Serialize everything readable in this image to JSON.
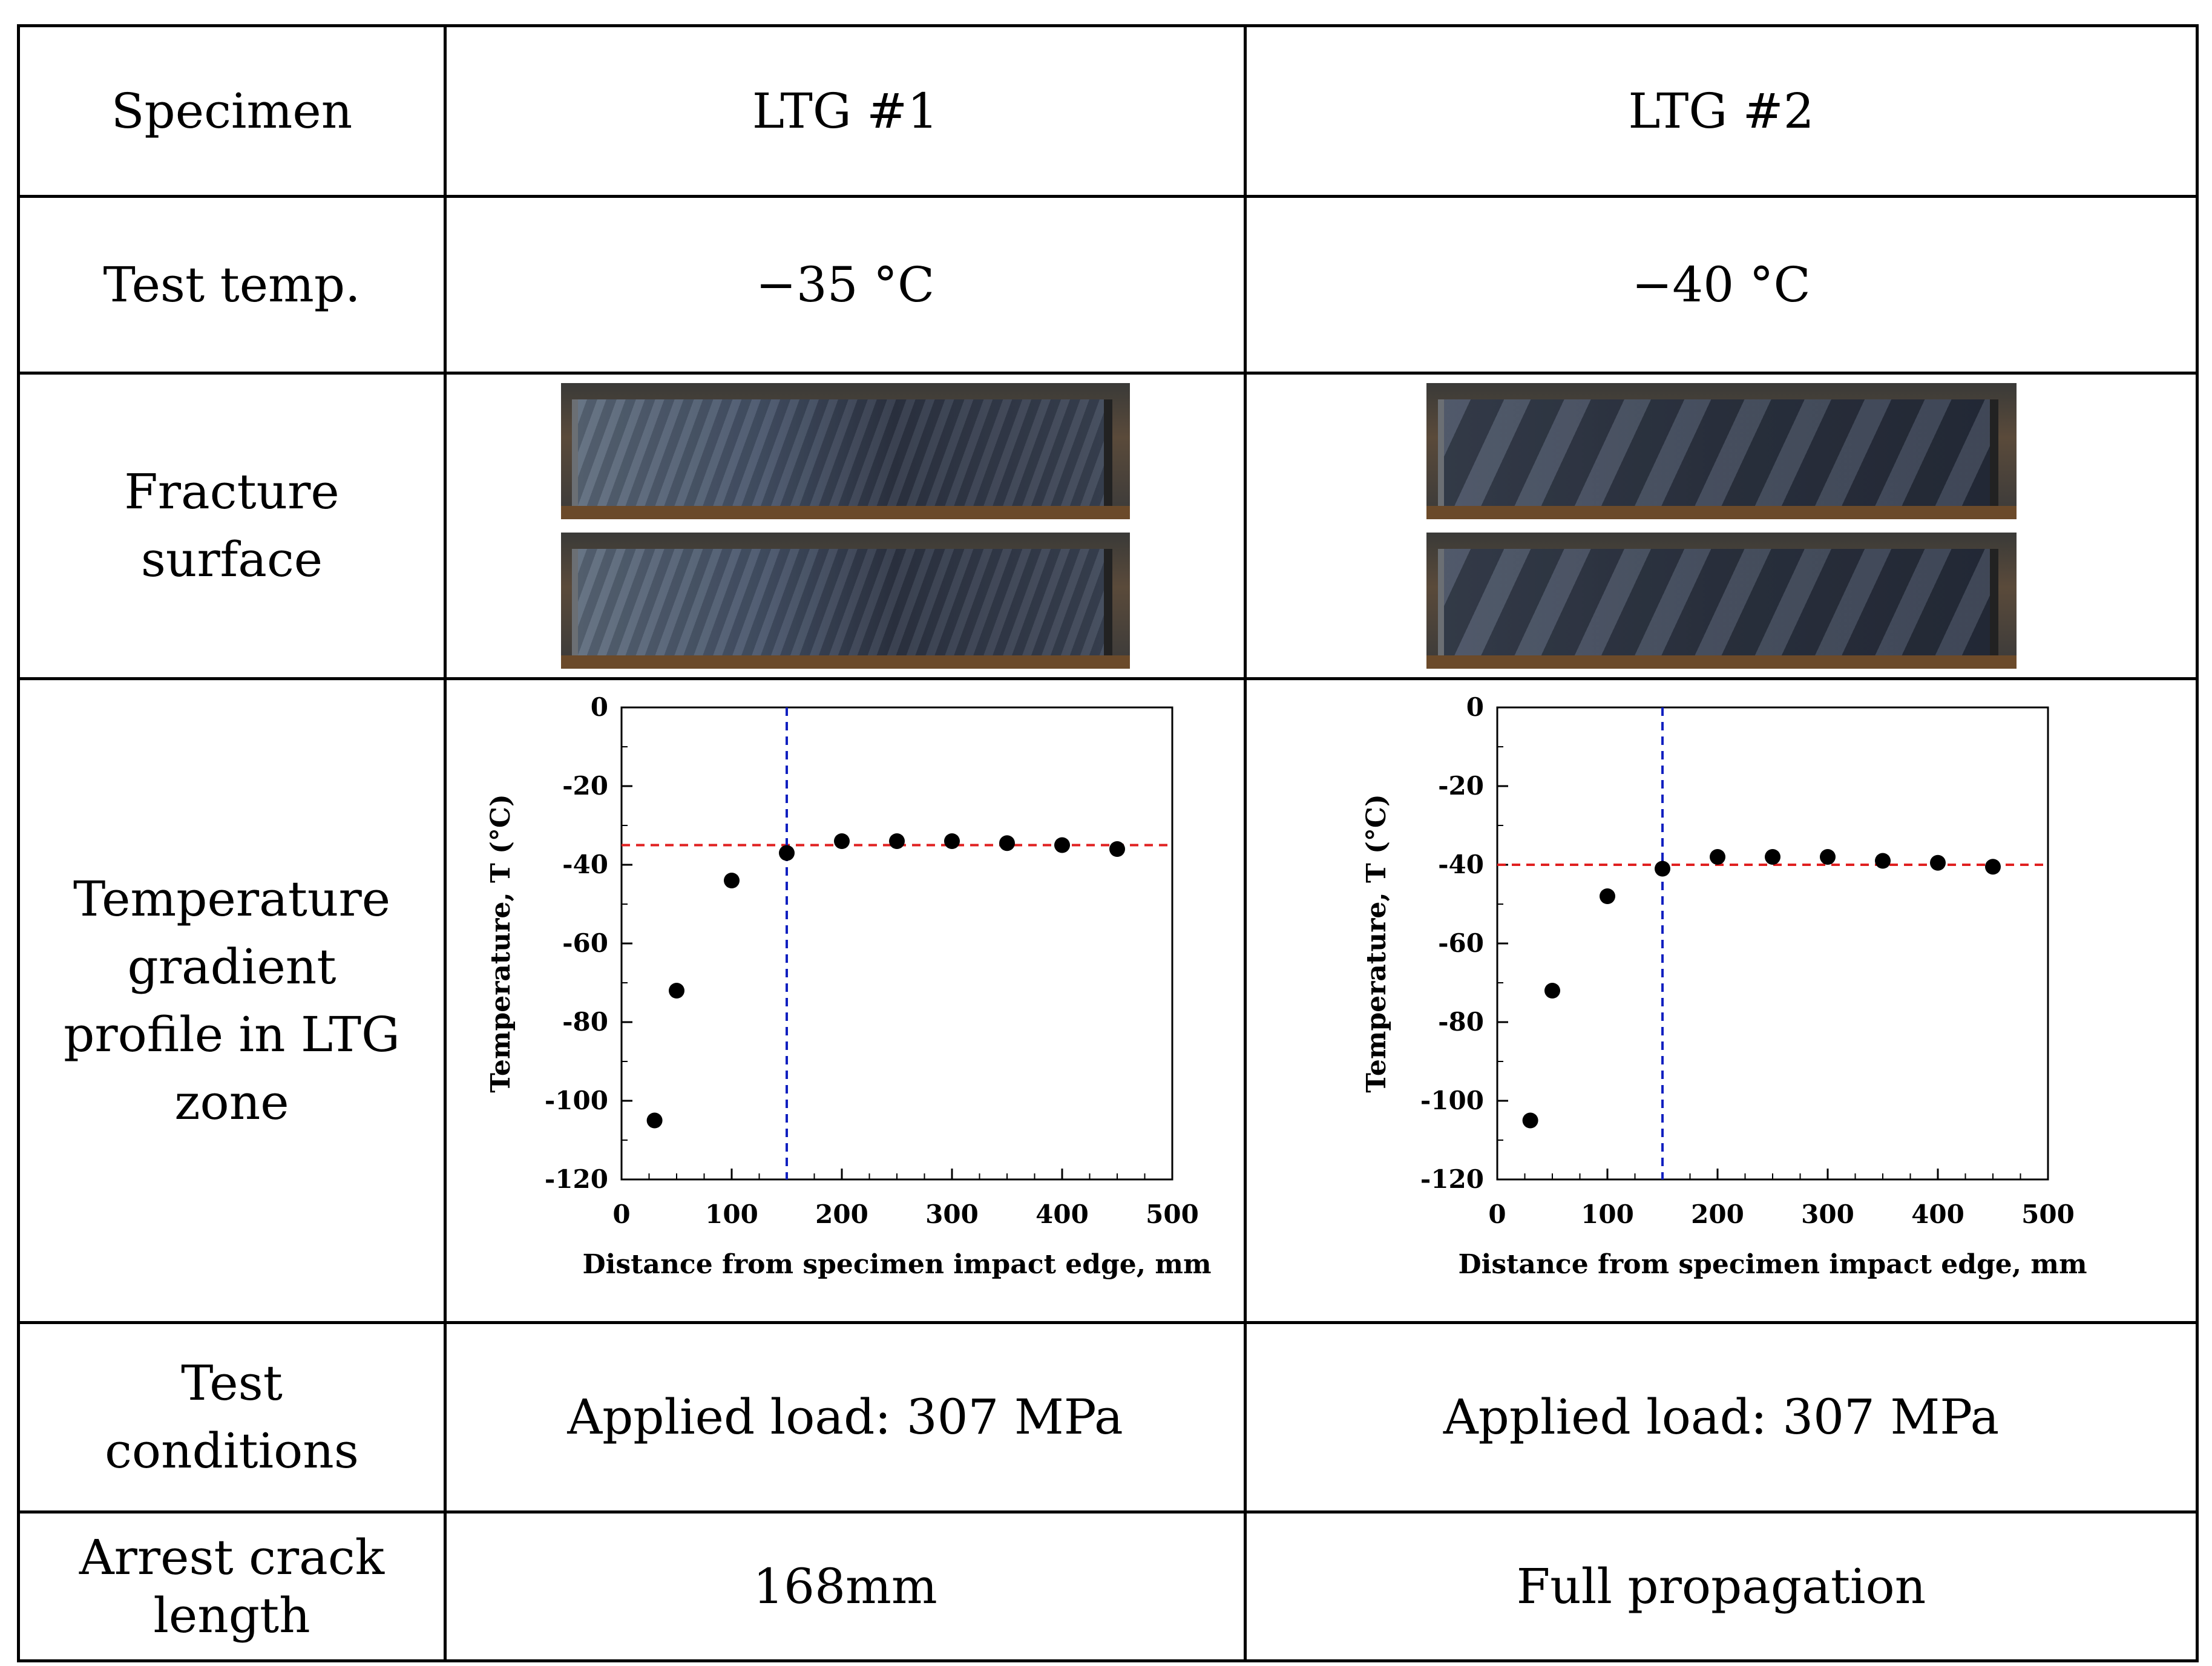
{
  "table": {
    "header": {
      "label": "Specimen",
      "col1": "LTG #1",
      "col2": "LTG #2"
    },
    "test_temp": {
      "label": "Test temp.",
      "col1": "−35 °C",
      "col2": "−40 °C"
    },
    "fracture": {
      "label_line1": "Fracture",
      "label_line2": "surface"
    },
    "gradient": {
      "label_line1": "Temperature",
      "label_line2": "gradient",
      "label_line3": "profile in LTG",
      "label_line4": "zone"
    },
    "conditions": {
      "label_line1": "Test",
      "label_line2": "conditions",
      "col1": "Applied load: 307 MPa",
      "col2": "Applied load: 307 MPa"
    },
    "arrest": {
      "label_line1": "Arrest crack",
      "label_line2": "length",
      "col1": "168mm",
      "col2": "Full propagation"
    }
  },
  "chart_data": [
    {
      "type": "scatter",
      "xlabel": "Distance from specimen impact edge, mm",
      "ylabel": "Temperature, T (°C)",
      "xlim": [
        0,
        500
      ],
      "ylim": [
        -120,
        0
      ],
      "x_ticks": [
        "0",
        "100",
        "200",
        "300",
        "400",
        "500"
      ],
      "y_ticks": [
        "0",
        "-20",
        "-40",
        "-60",
        "-80",
        "-100",
        "-120"
      ],
      "x": [
        30,
        50,
        100,
        150,
        200,
        250,
        300,
        350,
        400,
        450
      ],
      "y": [
        -105,
        -72,
        -44,
        -37,
        -34,
        -34,
        -34,
        -34.5,
        -35,
        -36
      ],
      "ref_hline": -35,
      "ref_vline": 150,
      "hline_color": "#e02020",
      "vline_color": "#1020c0"
    },
    {
      "type": "scatter",
      "xlabel": "Distance from specimen impact edge, mm",
      "ylabel": "Temperature, T (°C)",
      "xlim": [
        0,
        500
      ],
      "ylim": [
        -120,
        0
      ],
      "x_ticks": [
        "0",
        "100",
        "200",
        "300",
        "400",
        "500"
      ],
      "y_ticks": [
        "0",
        "-20",
        "-40",
        "-60",
        "-80",
        "-100",
        "-120"
      ],
      "x": [
        30,
        50,
        100,
        150,
        200,
        250,
        300,
        350,
        400,
        450
      ],
      "y": [
        -105,
        -72,
        -48,
        -41,
        -38,
        -38,
        -38,
        -39,
        -39.5,
        -40.5
      ],
      "ref_hline": -40,
      "ref_vline": 150,
      "hline_color": "#e02020",
      "vline_color": "#1020c0"
    }
  ]
}
